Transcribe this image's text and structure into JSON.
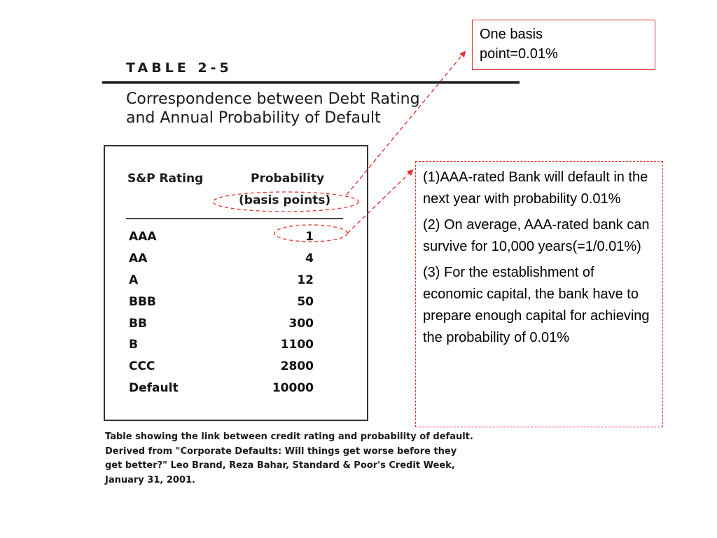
{
  "table": {
    "number": "TABLE 2-5",
    "title_line1": "Correspondence between Debt Rating",
    "title_line2": "and Annual Probability of Default",
    "header_rating": "S&P Rating",
    "header_prob_line1": "Probability",
    "header_prob_line2": "(basis points)",
    "rows": [
      {
        "rating": "AAA",
        "prob": "1"
      },
      {
        "rating": "AA",
        "prob": "4"
      },
      {
        "rating": "A",
        "prob": "12"
      },
      {
        "rating": "BBB",
        "prob": "50"
      },
      {
        "rating": "BB",
        "prob": "300"
      },
      {
        "rating": "B",
        "prob": "1100"
      },
      {
        "rating": "CCC",
        "prob": "2800"
      },
      {
        "rating": "Default",
        "prob": "10000"
      }
    ]
  },
  "caption": {
    "line1": "Table showing the link between credit rating and probability of default.",
    "line2": "Derived from \"Corporate Defaults: Will things get worse before they",
    "line3": "get better?\" Leo Brand, Reza Bahar, Standard & Poor's Credit Week,",
    "line4": "January 31, 2001."
  },
  "note_basis": {
    "line1": "One basis",
    "line2": "point=0.01%"
  },
  "note_points": {
    "p1": "(1)AAA-rated Bank will default in the next year with probability 0.01%",
    "p2": "(2) On average,  AAA-rated bank can survive for 10,000 years(=1/0.01%)",
    "p3": "(3) For the establishment of economic capital, the bank have to prepare enough capital for achieving the probability of 0.01%"
  },
  "colors": {
    "annotation": "#e03030",
    "text": "#000000"
  }
}
